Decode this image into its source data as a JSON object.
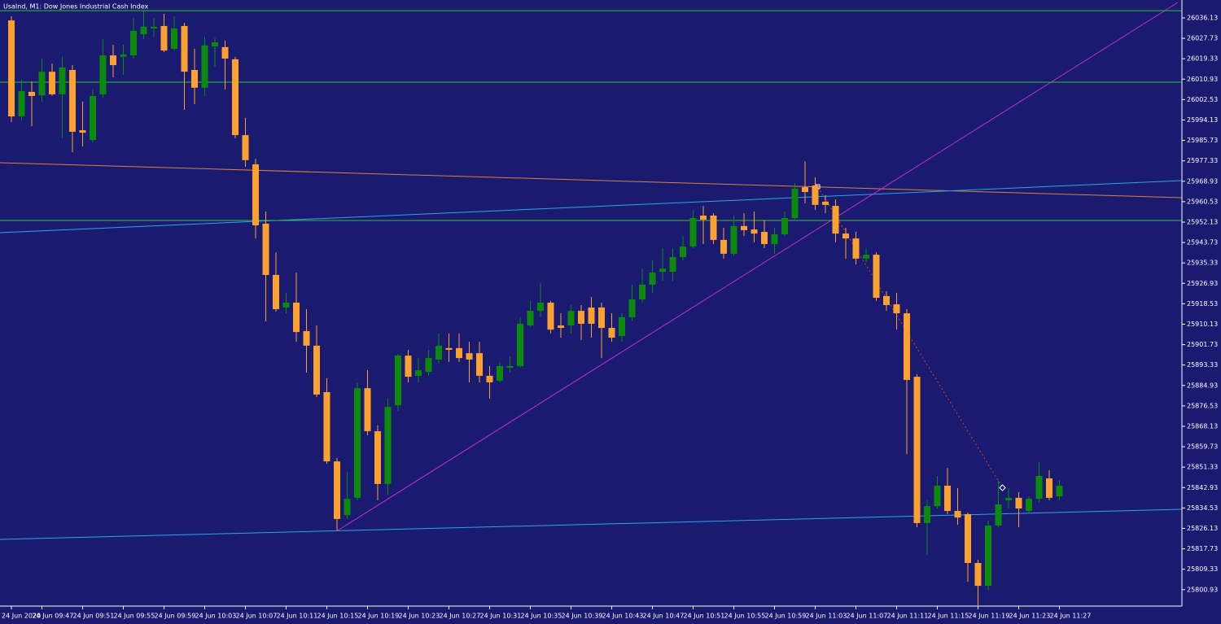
{
  "chart_data": {
    "type": "candlestick",
    "title": "UsaInd, M1: Dow Jones Industrial Cash Index",
    "categories": [
      "24 Jun 2020",
      null,
      null,
      "24 Jun 09:47",
      null,
      null,
      null,
      "24 Jun 09:51",
      null,
      null,
      null,
      "24 Jun 09:55",
      null,
      null,
      null,
      "24 Jun 09:59",
      null,
      null,
      null,
      "24 Jun 10:03",
      null,
      null,
      null,
      "24 Jun 10:07",
      null,
      null,
      null,
      "24 Jun 10:11",
      null,
      null,
      null,
      "24 Jun 10:15",
      null,
      null,
      null,
      "24 Jun 10:19",
      null,
      null,
      null,
      "24 Jun 10:23",
      null,
      null,
      null,
      "24 Jun 10:27",
      null,
      null,
      null,
      "24 Jun 10:31",
      null,
      null,
      null,
      "24 Jun 10:35",
      null,
      null,
      null,
      "24 Jun 10:39",
      null,
      null,
      null,
      "24 Jun 10:43",
      null,
      null,
      null,
      "24 Jun 10:47",
      null,
      null,
      null,
      "24 Jun 10:51",
      null,
      null,
      null,
      "24 Jun 10:55",
      null,
      null,
      null,
      "24 Jun 10:59",
      null,
      null,
      null,
      "24 Jun 11:03",
      null,
      null,
      null,
      "24 Jun 11:07",
      null,
      null,
      null,
      "24 Jun 11:11",
      null,
      null,
      null,
      "24 Jun 11:15",
      null,
      null,
      null,
      "24 Jun 11:19",
      null,
      null,
      null,
      "24 Jun 11:23",
      null,
      null,
      null,
      "24 Jun 11:27"
    ],
    "open": [
      26035.1,
      25995.6,
      26005.7,
      26004.3,
      26014.0,
      26004.7,
      26014.7,
      25989.9,
      25985.9,
      26004.7,
      26020.7,
      26020.1,
      26020.7,
      26029.4,
      26031.8,
      26032.8,
      26023.4,
      26032.8,
      26014.7,
      26007.4,
      26024.4,
      26024.1,
      26019.1,
      25987.9,
      25975.9,
      25951.5,
      25930.4,
      25917.0,
      25919.0,
      25907.3,
      25901.3,
      25882.2,
      25853.7,
      25831.6,
      25838.7,
      25883.8,
      25866.1,
      25844.4,
      25876.8,
      25897.2,
      25888.9,
      25890.5,
      25895.6,
      25900.3,
      25900.3,
      25898.2,
      25898.2,
      25888.9,
      25886.9,
      25892.2,
      25892.9,
      25909.6,
      25915.6,
      25919.0,
      25909.6,
      25909.6,
      25915.6,
      25917.0,
      25917.0,
      25908.6,
      25905.3,
      25913.0,
      25920.3,
      25926.4,
      25931.7,
      25931.7,
      25937.7,
      25942.1,
      25954.8,
      25954.8,
      25944.8,
      25939.1,
      25950.5,
      25949.1,
      25948.1,
      25943.1,
      25947.1,
      25953.8,
      25966.5,
      25967.2,
      25960.5,
      25958.8,
      25947.4,
      25945.4,
      25937.1,
      25938.7,
      25921.7,
      25918.3,
      25914.6,
      25888.5,
      25828.3,
      25835.3,
      25843.7,
      25833.3,
      25832.0,
      25811.9,
      25802.5,
      25827.3,
      25837.7,
      25838.7,
      25833.3,
      25838.3,
      25846.7,
      25839.3
    ],
    "high": [
      26036.8,
      26010.7,
      26010.0,
      26019.4,
      26017.4,
      26020.1,
      26016.7,
      26001.7,
      26006.7,
      26027.4,
      26025.1,
      26025.1,
      26036.1,
      26038.8,
      26036.1,
      26037.8,
      26036.8,
      26034.1,
      26023.4,
      26028.4,
      26027.8,
      26026.8,
      26020.1,
      25995.0,
      25978.2,
      25956.5,
      25939.7,
      25923.0,
      25931.4,
      25916.3,
      25909.6,
      25887.9,
      25855.1,
      25849.4,
      25886.2,
      25891.2,
      25868.5,
      25879.5,
      25897.9,
      25899.6,
      25896.2,
      25899.6,
      25906.3,
      25906.3,
      25906.3,
      25902.9,
      25902.9,
      25892.9,
      25894.6,
      25896.9,
      25913.0,
      25919.7,
      25927.0,
      25919.7,
      25914.6,
      25918.0,
      25918.0,
      25921.3,
      25919.0,
      25914.6,
      25914.6,
      25926.4,
      25933.0,
      25936.4,
      25941.4,
      25941.4,
      25946.4,
      25957.1,
      25958.8,
      25955.8,
      25949.8,
      25954.8,
      25955.8,
      25956.5,
      25953.1,
      25949.8,
      25956.5,
      25968.2,
      25977.2,
      25970.5,
      25963.2,
      25961.5,
      25949.8,
      25948.1,
      25941.4,
      25939.7,
      25923.7,
      25923.0,
      25916.3,
      25889.5,
      25837.7,
      25847.7,
      25851.0,
      25842.7,
      25832.6,
      25813.2,
      25829.3,
      25846.0,
      25842.7,
      25841.0,
      25839.3,
      25853.4,
      25850.0,
      25846.0
    ],
    "low": [
      25993.3,
      25994.0,
      25991.6,
      26001.7,
      26004.0,
      25986.6,
      25980.9,
      25983.3,
      25984.9,
      26003.3,
      26011.7,
      26012.7,
      26019.4,
      26027.4,
      26028.4,
      26022.1,
      26022.7,
      25998.3,
      26000.7,
      26004.0,
      26016.1,
      26006.7,
      25986.6,
      25974.9,
      25945.4,
      25911.3,
      25915.3,
      25914.6,
      25902.9,
      25890.2,
      25880.2,
      25852.7,
      25825.3,
      25830.0,
      25837.7,
      25864.4,
      25837.7,
      25840.0,
      25874.5,
      25886.2,
      25886.2,
      25888.9,
      25893.9,
      25894.6,
      25894.6,
      25886.2,
      25886.2,
      25879.5,
      25886.2,
      25890.2,
      25892.2,
      25909.0,
      25913.0,
      25906.3,
      25904.6,
      25906.3,
      25903.6,
      25904.6,
      25896.2,
      25902.9,
      25902.9,
      25911.3,
      25919.0,
      25923.0,
      25928.0,
      25928.0,
      25936.4,
      25941.4,
      25943.1,
      25943.1,
      25937.1,
      25938.1,
      25946.4,
      25943.8,
      25941.4,
      25939.1,
      25946.4,
      25952.5,
      25959.8,
      25957.1,
      25955.8,
      25943.8,
      25937.1,
      25934.7,
      25935.7,
      25919.7,
      25915.6,
      25907.9,
      25856.7,
      25826.6,
      25815.2,
      25834.3,
      25832.0,
      25827.6,
      25804.2,
      25794.5,
      25800.8,
      25826.6,
      25834.3,
      25826.6,
      25832.6,
      25836.7,
      25837.7,
      25837.7
    ],
    "close": [
      25995.6,
      26006.0,
      26004.0,
      26014.0,
      26004.7,
      26015.7,
      25989.3,
      25988.9,
      26004.0,
      26020.7,
      26016.7,
      26021.1,
      26030.8,
      26032.5,
      26032.5,
      26022.7,
      26031.8,
      26014.0,
      26007.4,
      26024.8,
      26026.1,
      26019.4,
      25987.9,
      25977.6,
      25950.8,
      25930.4,
      25916.3,
      25919.0,
      25906.9,
      25901.3,
      25881.2,
      25853.7,
      25830.0,
      25838.3,
      25883.8,
      25866.1,
      25844.4,
      25876.1,
      25897.2,
      25888.5,
      25891.2,
      25896.2,
      25901.3,
      25899.6,
      25896.2,
      25895.6,
      25888.9,
      25886.2,
      25892.9,
      25892.9,
      25910.3,
      25915.6,
      25919.0,
      25907.9,
      25908.6,
      25915.6,
      25910.3,
      25910.3,
      25908.6,
      25904.6,
      25913.0,
      25920.3,
      25926.4,
      25931.4,
      25933.0,
      25937.7,
      25942.1,
      25953.8,
      25953.1,
      25944.8,
      25939.1,
      25950.5,
      25948.8,
      25947.4,
      25943.1,
      25947.1,
      25953.8,
      25965.9,
      25964.5,
      25959.2,
      25959.2,
      25947.4,
      25945.4,
      25937.1,
      25938.7,
      25921.0,
      25918.0,
      25914.6,
      25887.2,
      25828.3,
      25835.3,
      25843.7,
      25833.3,
      25830.6,
      25811.9,
      25802.5,
      25827.3,
      25836.0,
      25838.7,
      25834.3,
      25838.3,
      25847.7,
      25838.7,
      25843.7
    ],
    "up_color": "#0b8a0b",
    "down_color": "#fca12f",
    "levels": [
      26039.1,
      26009.7,
      25952.8
    ],
    "level_color": "#2ec22e",
    "ylim": [
      25794.16,
      26043.49
    ],
    "yticks": [
      26036.13,
      26027.73,
      26019.33,
      26010.93,
      26002.53,
      25994.13,
      25985.73,
      25977.33,
      25968.93,
      25960.53,
      25952.13,
      25943.73,
      25935.33,
      25926.93,
      25918.53,
      25910.13,
      25901.73,
      25893.33,
      25884.93,
      25876.53,
      25868.13,
      25859.73,
      25851.33,
      25842.93,
      25834.53,
      25826.13,
      25817.73,
      25809.33,
      25800.93
    ]
  }
}
